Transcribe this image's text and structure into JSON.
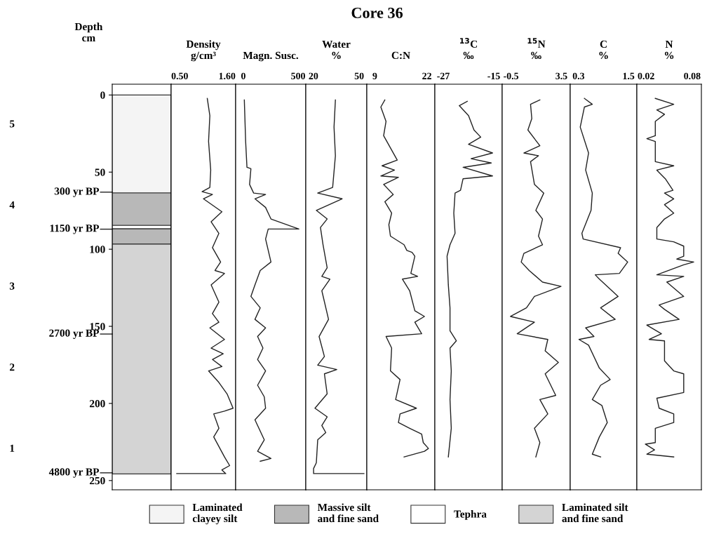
{
  "chart_data": [
    {
      "type": "bar",
      "stacked": true,
      "ylabel": "Depth\ncm",
      "categories": [
        null
      ],
      "ylim": [
        256,
        -7
      ],
      "yticks": [
        0,
        50,
        100,
        150,
        200,
        250
      ],
      "tick_labels": "y",
      "legend": "bottom",
      "series": [
        {
          "name": "Laminated\nclayey silt",
          "color": "#f4f4f4",
          "values": [
            63.5
          ]
        },
        {
          "name": "Massive silt\nand fine sand",
          "color": "#b8b8b8",
          "values": [
            21.1
          ]
        },
        {
          "name": "Tephra",
          "color": "#ffffff",
          "values": [
            2.2
          ]
        },
        {
          "color": "#b8b8b8",
          "values": [
            9.9
          ]
        },
        {
          "name": "Laminated silt\nand fine sand",
          "color": "#d4d4d4",
          "values": [
            149
          ]
        }
      ],
      "annotations": [
        "5",
        "4",
        "3",
        "2",
        "1"
      ],
      "ref_lines": [
        {
          "axis": "y",
          "value": 63,
          "label": "300 yr BP"
        },
        {
          "axis": "y",
          "value": 87,
          "label": "1150 yr BP"
        },
        {
          "axis": "y",
          "value": 155,
          "label": "2700 yr BP"
        },
        {
          "axis": "y",
          "value": 245,
          "label": "4800 yr BP"
        }
      ]
    },
    {
      "type": "line",
      "title": "Density\ng/cm³",
      "ylim": [
        256,
        -7
      ],
      "xlim": [
        0.3,
        1.8
      ],
      "xticks": [
        {
          "value": 0.5,
          "label": "0.50"
        },
        {
          "value": 1.6,
          "label": "1.60"
        }
      ],
      "tick_labels": "x",
      "series": [
        {
          "color": "#222222",
          "x": [
            1.14,
            1.2,
            1.17,
            1.22,
            1.2,
            1.02,
            1.26,
            1.05,
            1.48,
            1.23,
            1.41,
            1.26,
            1.45,
            1.32,
            1.54,
            1.23,
            1.41,
            1.26,
            1.41,
            1.2,
            1.54,
            1.23,
            1.51,
            1.26,
            1.48,
            1.17,
            1.41,
            1.6,
            1.74,
            1.54,
            1.29,
            1.41,
            1.29,
            1.54,
            1.66,
            1.48,
            1.57,
            0.43
          ],
          "values": [
            2.2,
            13.4,
            30.1,
            48.7,
            59.9,
            62.7,
            64.5,
            67.3,
            75.7,
            82.2,
            89.7,
            99.0,
            108.3,
            113.8,
            115.7,
            123.1,
            134.3,
            141.7,
            147.3,
            151.0,
            158.5,
            164.1,
            167.8,
            171.5,
            176.1,
            178.9,
            186.4,
            193.8,
            203.1,
            205.0,
            206.8,
            216.1,
            221.7,
            234.7,
            240.3,
            243.1,
            245.5,
            245.5
          ]
        }
      ]
    },
    {
      "type": "line",
      "title": "Magn. Susc.",
      "ylim": [
        256,
        -7
      ],
      "xlim": [
        -70,
        570
      ],
      "xticks": [
        0,
        500
      ],
      "tick_labels": "x",
      "series": [
        {
          "color": "#222222",
          "x": [
            9,
            21,
            33,
            69,
            57,
            94,
            203,
            106,
            203,
            227,
            252,
            507,
            227,
            203,
            252,
            154,
            106,
            69,
            154,
            106,
            203,
            130,
            179,
            130,
            203,
            130,
            191,
            203,
            106,
            191,
            130,
            252,
            154
          ],
          "values": [
            3.2,
            30.1,
            46.9,
            47.8,
            58.0,
            63.6,
            64.5,
            67.3,
            72.9,
            76.6,
            80.4,
            86.9,
            86.9,
            93.4,
            108.3,
            113.8,
            123.1,
            130.6,
            138.0,
            145.5,
            151.0,
            156.6,
            164.1,
            171.5,
            178.9,
            188.2,
            195.7,
            203.1,
            210.6,
            223.6,
            231.0,
            235.7,
            237.5
          ]
        }
      ]
    },
    {
      "type": "line",
      "title": "Water\n%",
      "ylim": [
        256,
        -7
      ],
      "xlim": [
        15,
        55
      ],
      "xticks": [
        20,
        50
      ],
      "tick_labels": "x",
      "series": [
        {
          "color": "#222222",
          "x": [
            34.4,
            33.5,
            34.4,
            32.6,
            22.8,
            38.8,
            21.9,
            29.0,
            24.6,
            26.3,
            29.0,
            25.5,
            30.8,
            25.5,
            29.9,
            23.7,
            27.2,
            22.8,
            35.3,
            27.2,
            29.0,
            21.0,
            29.0,
            25.5,
            28.1,
            22.8,
            21.9,
            20.1,
            20.1,
            53.1
          ],
          "values": [
            3.2,
            20.8,
            39.4,
            59.9,
            63.6,
            67.3,
            74.8,
            80.4,
            85.9,
            97.1,
            112.0,
            117.6,
            119.4,
            126.9,
            145.5,
            156.6,
            169.6,
            175.2,
            178.0,
            180.8,
            193.8,
            203.1,
            208.7,
            214.3,
            218.9,
            223.6,
            238.5,
            242.2,
            245.5,
            245.5
          ]
        }
      ]
    },
    {
      "type": "line",
      "title": "C:N",
      "annotations": [
        "Core 36"
      ],
      "ylim": [
        256,
        -7
      ],
      "xlim": [
        7,
        24
      ],
      "xticks": [
        9,
        22
      ],
      "tick_labels": "x",
      "series": [
        {
          "color": "#222222",
          "x": [
            11.5,
            10.5,
            11.8,
            11.2,
            14.6,
            10.8,
            13.9,
            10.5,
            14.9,
            11.2,
            13.6,
            11.5,
            13.2,
            12.5,
            12.9,
            16.3,
            17.0,
            18.3,
            19.0,
            18.0,
            19.7,
            15.9,
            17.7,
            19.0,
            21.4,
            19.0,
            20.7,
            11.8,
            13.2,
            12.9,
            15.3,
            14.2,
            19.4,
            15.3,
            14.9,
            17.7,
            20.7,
            21.1,
            22.4,
            21.4,
            16.3
          ],
          "values": [
            3.2,
            7.8,
            17.1,
            26.4,
            42.2,
            45.9,
            48.7,
            52.5,
            53.4,
            58.0,
            64.5,
            69.2,
            76.6,
            84.1,
            91.5,
            97.1,
            100.8,
            102.0,
            104.5,
            115.7,
            117.6,
            119.4,
            126.9,
            139.9,
            143.6,
            147.3,
            154.8,
            156.6,
            164.1,
            178.9,
            184.5,
            197.5,
            203.1,
            206.8,
            212.4,
            216.1,
            219.9,
            225.4,
            229.2,
            231.0,
            234.7
          ]
        }
      ]
    },
    {
      "type": "line",
      "title": "$^{13}$C\n‰",
      "ylim": [
        256,
        -7
      ],
      "xlim": [
        -29,
        -13
      ],
      "xticks": [
        -27,
        -15
      ],
      "tick_labels": "x",
      "series": [
        {
          "color": "#222222",
          "x": [
            -21.3,
            -23.2,
            -21.0,
            -19.7,
            -18.1,
            -21.0,
            -15.3,
            -20.4,
            -15.6,
            -22.3,
            -15.3,
            -22.3,
            -22.9,
            -24.2,
            -24.5,
            -24.2,
            -25.4,
            -26.1,
            -25.8,
            -25.4,
            -25.4,
            -23.9,
            -25.4,
            -25.1,
            -25.4,
            -25.1,
            -25.8
          ],
          "values": [
            4.1,
            6.9,
            13.4,
            22.7,
            27.3,
            32.0,
            37.6,
            41.3,
            44.1,
            46.9,
            52.5,
            54.3,
            61.8,
            63.6,
            76.6,
            89.7,
            97.1,
            104.5,
            123.1,
            138.0,
            152.9,
            159.4,
            164.1,
            178.9,
            197.5,
            216.1,
            234.7
          ]
        }
      ]
    },
    {
      "type": "line",
      "title": "$^{15}$N\n‰",
      "ylim": [
        256,
        -7
      ],
      "xlim": [
        -1.2,
        4.2
      ],
      "xticks": [
        -0.5,
        3.5
      ],
      "tick_labels": "x",
      "series": [
        {
          "color": "#222222",
          "x": [
            1.79,
            1.05,
            1.15,
            0.84,
            1.79,
            0.52,
            1.68,
            1.05,
            1.36,
            2.1,
            1.47,
            2.0,
            1.68,
            2.0,
            0.52,
            0.31,
            0.94,
            2.0,
            3.47,
            1.36,
            0.73,
            -0.54,
            1.36,
            -0.01,
            2.42,
            2.21,
            3.26,
            2.21,
            3.05,
            1.79,
            2.42,
            1.36,
            1.79,
            1.47
          ],
          "values": [
            3.2,
            6.0,
            15.3,
            22.7,
            32.9,
            37.6,
            39.4,
            43.2,
            58.0,
            63.6,
            74.8,
            80.4,
            91.5,
            97.1,
            102.7,
            108.3,
            113.8,
            121.3,
            124.1,
            130.6,
            138.0,
            143.6,
            147.3,
            154.8,
            158.5,
            165.9,
            173.4,
            180.8,
            194.8,
            197.5,
            206.8,
            216.1,
            225.4,
            234.7
          ]
        }
      ]
    },
    {
      "type": "line",
      "title": "C\n%",
      "ylim": [
        256,
        -7
      ],
      "xlim": [
        0.1,
        1.7
      ],
      "xticks": [
        0.3,
        1.5
      ],
      "tick_labels": "x",
      "series": [
        {
          "color": "#222222",
          "x": [
            0.44,
            0.63,
            0.44,
            0.34,
            0.54,
            0.47,
            0.63,
            0.6,
            0.38,
            0.41,
            1.31,
            1.25,
            1.48,
            1.28,
            0.7,
            0.8,
            1.25,
            0.83,
            1.18,
            0.47,
            0.67,
            0.31,
            0.54,
            0.8,
            1.06,
            0.83,
            0.63,
            0.86,
            0.99,
            0.8,
            0.63,
            0.83
          ],
          "values": [
            2.2,
            6.0,
            7.8,
            20.8,
            37.6,
            48.7,
            63.6,
            74.8,
            89.7,
            93.4,
            99.0,
            102.7,
            108.3,
            115.7,
            116.6,
            119.4,
            130.6,
            138.0,
            145.5,
            151.0,
            156.6,
            158.5,
            162.2,
            177.1,
            184.5,
            188.2,
            197.5,
            201.3,
            212.4,
            221.7,
            232.9,
            234.7
          ]
        }
      ]
    },
    {
      "type": "line",
      "title": "N\n%",
      "ylim": [
        256,
        -7
      ],
      "xlim": [
        0.008,
        0.092
      ],
      "xticks": [
        0.02,
        0.08
      ],
      "tick_labels": "x",
      "series": [
        {
          "color": "#222222",
          "x": [
            0.032,
            0.056,
            0.034,
            0.044,
            0.032,
            0.032,
            0.021,
            0.032,
            0.032,
            0.056,
            0.034,
            0.045,
            0.055,
            0.044,
            0.056,
            0.044,
            0.056,
            0.044,
            0.034,
            0.034,
            0.056,
            0.069,
            0.069,
            0.06,
            0.082,
            0.069,
            0.034,
            0.069,
            0.047,
            0.069,
            0.037,
            0.044,
            0.063,
            0.021,
            0.04,
            0.024,
            0.044,
            0.044,
            0.056,
            0.069,
            0.069,
            0.034,
            0.037,
            0.056,
            0.056,
            0.032,
            0.032,
            0.019,
            0.031,
            0.021,
            0.056
          ],
          "values": [
            2.2,
            6.0,
            9.7,
            12.5,
            17.1,
            26.4,
            28.3,
            30.1,
            43.2,
            45.9,
            48.7,
            54.3,
            61.8,
            63.6,
            67.3,
            71.1,
            76.6,
            80.4,
            85.9,
            93.4,
            95.2,
            98.0,
            104.5,
            106.4,
            108.3,
            110.1,
            116.6,
            117.6,
            121.3,
            130.6,
            136.2,
            139.0,
            145.5,
            149.2,
            154.8,
            158.5,
            159.4,
            172.4,
            178.9,
            180.8,
            192.9,
            196.6,
            203.1,
            206.8,
            212.4,
            216.1,
            225.4,
            226.4,
            230.1,
            232.9,
            234.7
          ]
        }
      ]
    }
  ]
}
